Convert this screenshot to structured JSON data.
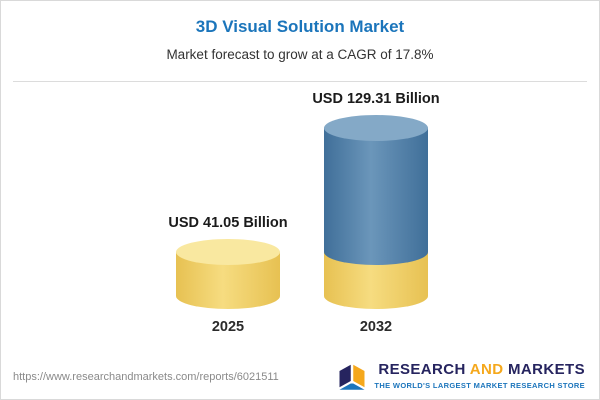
{
  "header": {
    "title": "3D Visual Solution Market",
    "subtitle": "Market forecast to grow at a CAGR of 17.8%"
  },
  "chart_data": {
    "type": "bar",
    "variant": "3d-cylinder",
    "title": "3D Visual Solution Market",
    "subtitle": "Market forecast to grow at a CAGR of 17.8%",
    "cagr": "17.8%",
    "categories": [
      "2025",
      "2032"
    ],
    "values": [
      41.05,
      129.31
    ],
    "value_labels": [
      "USD 41.05 Billion",
      "USD 129.31 Billion"
    ],
    "unit": "USD Billion",
    "ylim": [
      0,
      140
    ],
    "legend": "none",
    "grid": false,
    "colors": {
      "bar_2025": "#F1CE63",
      "bar_2032_growth": "#4C7EA8",
      "bar_2032_base": "#F1CE63",
      "cap_yellow": "#F9E8A0",
      "cap_blue": "#84A9C7",
      "title_accent": "#1B75BB"
    }
  },
  "footer": {
    "url": "https://www.researchandmarkets.com/reports/6021511",
    "brand": {
      "word1": "RESEARCH",
      "word2": "AND",
      "word3": "MARKETS",
      "tagline": "THE WORLD'S LARGEST MARKET RESEARCH STORE"
    }
  }
}
